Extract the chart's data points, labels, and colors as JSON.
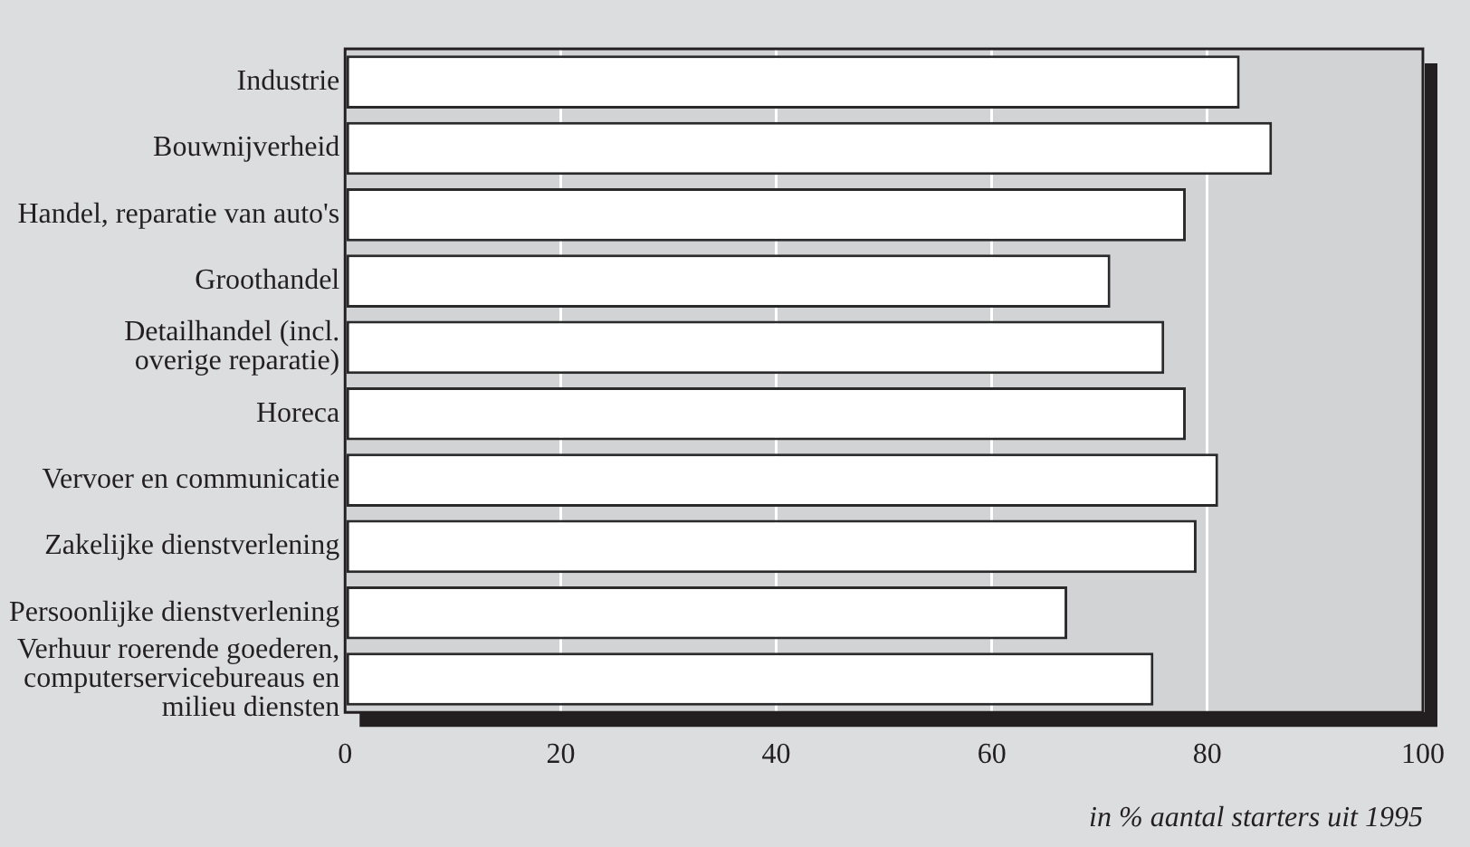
{
  "chart_data": {
    "type": "bar",
    "orientation": "horizontal",
    "xlabel": "in % aantal starters uit 1995",
    "categories": [
      "Industrie",
      "Bouwnijverheid",
      "Handel, reparatie van auto's",
      "Groothandel",
      "Detailhandel (incl.\noverige reparatie)",
      "Horeca",
      "Vervoer en communicatie",
      "Zakelijke dienstverlening",
      "Persoonlijke dienstverlening",
      "Verhuur roerende goederen,\ncomputerservicebureaus en\nmilieu diensten"
    ],
    "values": [
      83,
      86,
      78,
      71,
      76,
      78,
      81,
      79,
      67,
      75
    ],
    "color": "#ffffff",
    "xlim": [
      0,
      100
    ],
    "xticks": [
      0,
      20,
      40,
      60,
      80,
      100
    ],
    "grid": "x",
    "legend": false
  }
}
